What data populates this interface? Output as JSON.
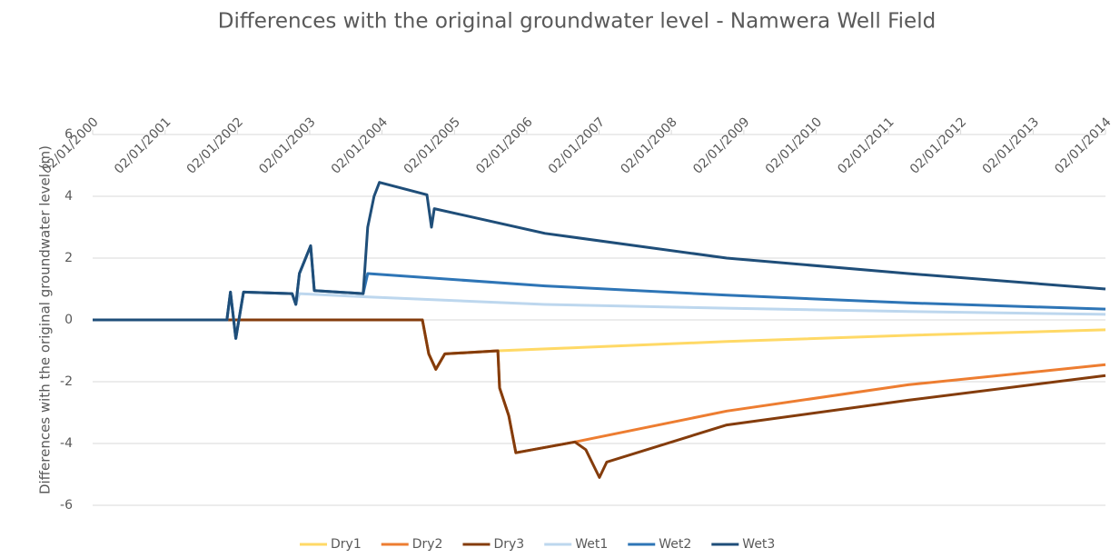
{
  "chart_data": {
    "type": "line",
    "title": "Differences with the original groundwater level - Namwera Well Field",
    "y_label": "Differences with the original groundwater level (m)",
    "xlim": [
      "02/01/2000",
      "02/01/2014"
    ],
    "xticks": [
      "02/01/2000",
      "02/01/2001",
      "02/01/2002",
      "02/01/2003",
      "02/01/2004",
      "02/01/2005",
      "02/01/2006",
      "02/01/2007",
      "02/01/2008",
      "02/01/2009",
      "02/01/2010",
      "02/01/2011",
      "02/01/2012",
      "02/01/2013",
      "02/01/2014"
    ],
    "ylim": [
      -6,
      6
    ],
    "yticks": [
      -6,
      -4,
      -2,
      0,
      2,
      4,
      6
    ],
    "grid": true,
    "legend": "bottom",
    "series": [
      {
        "name": "Dry1",
        "color": "#ffd966",
        "x": [
          "02/01/2000",
          "24/07/2004",
          "25/08/2004",
          "30/09/2004",
          "14/11/2004",
          "09/08/2005",
          "08/10/2008",
          "12/04/2011",
          "02/01/2014"
        ],
        "values": [
          0,
          0,
          -1.1,
          -1.6,
          -1.1,
          -1.0,
          -0.7,
          -0.5,
          -0.32
        ]
      },
      {
        "name": "Dry2",
        "color": "#ed7d31",
        "x": [
          "02/01/2000",
          "24/07/2004",
          "25/08/2004",
          "30/09/2004",
          "14/11/2004",
          "09/08/2005",
          "18/08/2005",
          "03/10/2005",
          "08/11/2005",
          "02/09/2006",
          "08/10/2008",
          "12/04/2011",
          "02/01/2014"
        ],
        "values": [
          0,
          0,
          -1.1,
          -1.6,
          -1.1,
          -1.0,
          -2.2,
          -3.1,
          -4.3,
          -3.95,
          -2.95,
          -2.1,
          -1.45
        ]
      },
      {
        "name": "Dry3",
        "color": "#843c0c",
        "x": [
          "02/01/2000",
          "24/07/2004",
          "25/08/2004",
          "30/09/2004",
          "14/11/2004",
          "09/08/2005",
          "18/08/2005",
          "03/10/2005",
          "08/11/2005",
          "02/09/2006",
          "27/10/2006",
          "04/01/2007",
          "10/02/2007",
          "08/10/2008",
          "12/04/2011",
          "02/01/2014"
        ],
        "values": [
          0,
          0,
          -1.1,
          -1.6,
          -1.1,
          -1.0,
          -2.2,
          -3.1,
          -4.3,
          -3.95,
          -4.2,
          -5.1,
          -4.6,
          -3.4,
          -2.6,
          -1.8
        ]
      },
      {
        "name": "Wet1",
        "color": "#bdd7ee",
        "x": [
          "02/01/2000",
          "10/11/2001",
          "28/11/2001",
          "25/12/2001",
          "02/02/2002",
          "05/10/2002",
          "24/10/2002",
          "11/11/2002",
          "29/09/2003",
          "04/04/2006",
          "08/10/2008",
          "12/04/2011",
          "02/01/2014"
        ],
        "values": [
          0,
          0,
          0.9,
          -0.6,
          0.9,
          0.85,
          0.5,
          0.85,
          0.75,
          0.5,
          0.38,
          0.27,
          0.18
        ]
      },
      {
        "name": "Wet2",
        "color": "#2e75b6",
        "x": [
          "02/01/2000",
          "10/11/2001",
          "28/11/2001",
          "25/12/2001",
          "02/02/2002",
          "05/10/2002",
          "24/10/2002",
          "11/11/2002",
          "07/01/2003",
          "25/01/2003",
          "29/09/2003",
          "22/10/2003",
          "04/04/2006",
          "08/10/2008",
          "12/04/2011",
          "02/01/2014"
        ],
        "values": [
          0,
          0,
          0.9,
          -0.6,
          0.9,
          0.85,
          0.5,
          1.5,
          2.4,
          0.95,
          0.85,
          1.5,
          1.1,
          0.8,
          0.55,
          0.35
        ]
      },
      {
        "name": "Wet3",
        "color": "#1f4e79",
        "x": [
          "02/01/2000",
          "10/11/2001",
          "28/11/2001",
          "25/12/2001",
          "02/02/2002",
          "05/10/2002",
          "24/10/2002",
          "11/11/2002",
          "07/01/2003",
          "25/01/2003",
          "29/09/2003",
          "22/10/2003",
          "23/11/2003",
          "20/12/2003",
          "16/08/2004",
          "08/09/2004",
          "22/09/2004",
          "04/04/2006",
          "08/10/2008",
          "12/04/2011",
          "02/01/2014"
        ],
        "values": [
          0,
          0,
          0.9,
          -0.6,
          0.9,
          0.85,
          0.5,
          1.5,
          2.4,
          0.95,
          0.85,
          3.0,
          4.0,
          4.45,
          4.05,
          3.0,
          3.6,
          2.8,
          2.0,
          1.5,
          1.0
        ]
      }
    ]
  }
}
